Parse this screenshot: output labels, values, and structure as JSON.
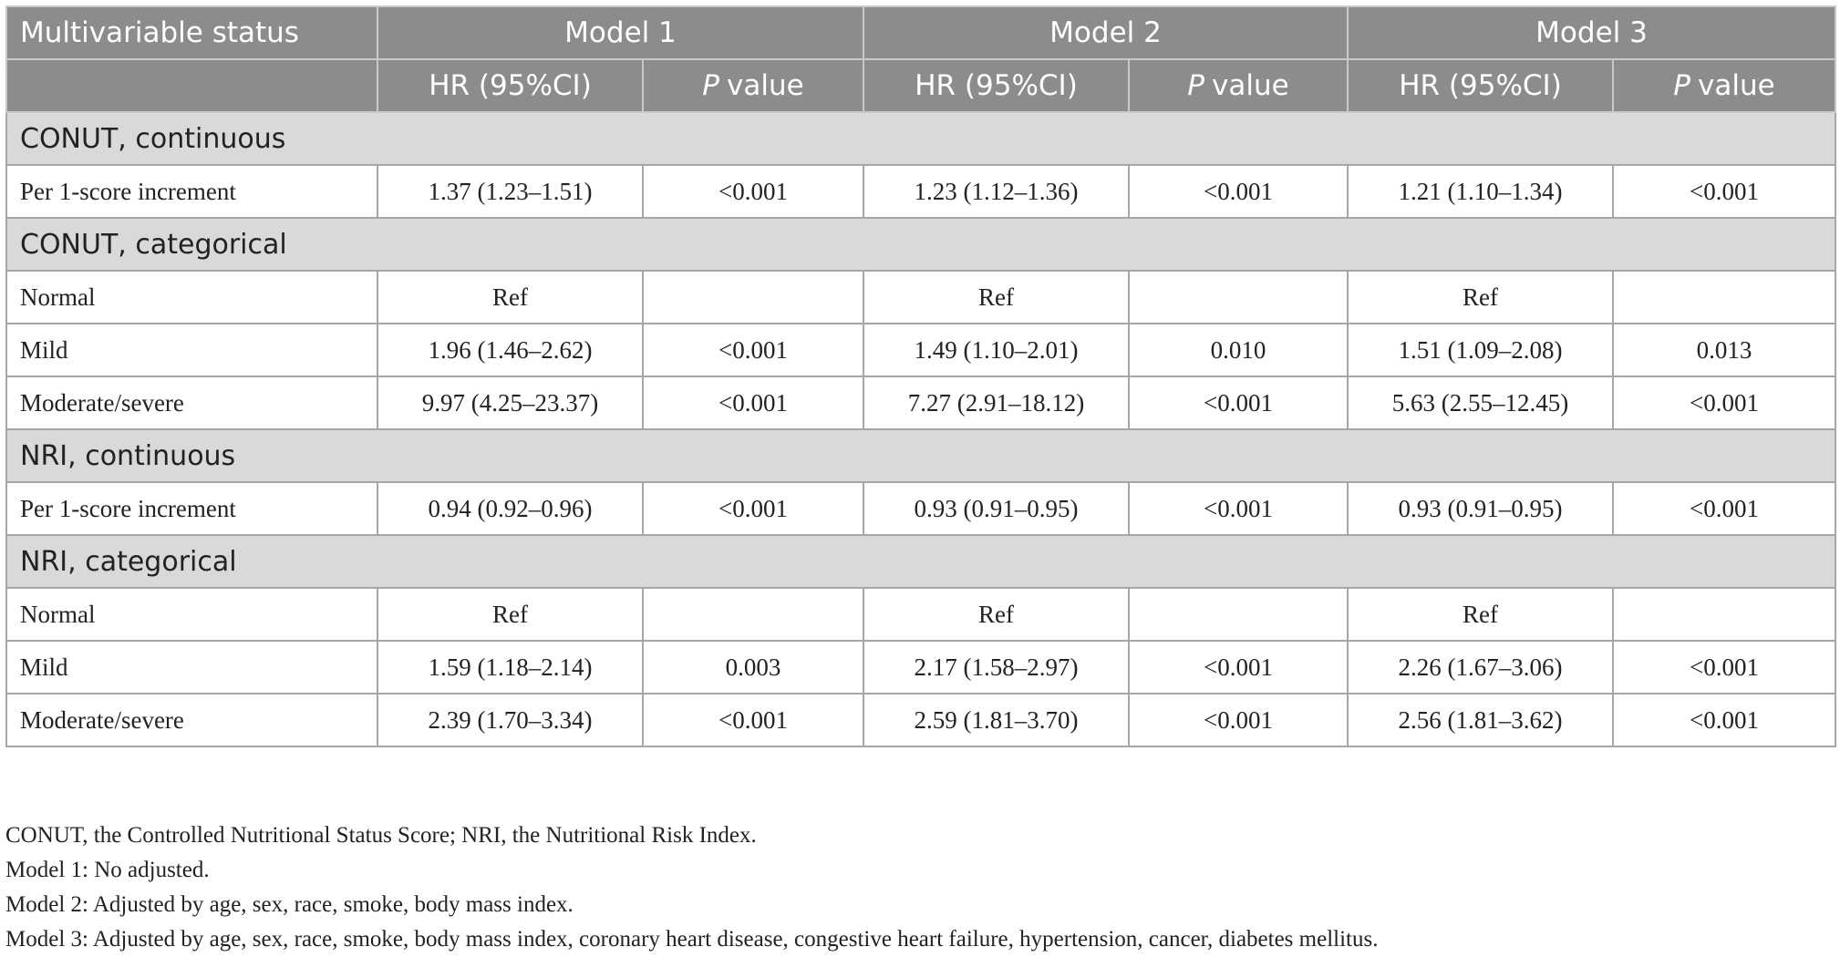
{
  "table": {
    "header": {
      "first": "Multivariable status",
      "models": [
        "Model 1",
        "Model 2",
        "Model 3"
      ],
      "subheaders": [
        "HR (95%CI)",
        {
          "italic": "P",
          "rest": "value"
        },
        "HR (95%CI)",
        {
          "italic": "P",
          "rest": "value"
        },
        "HR (95%CI)",
        {
          "italic": "P",
          "rest": "value"
        }
      ]
    },
    "sections": [
      {
        "title": "CONUT, continuous",
        "rows": [
          [
            "Per 1-score increment",
            "1.37 (1.23–1.51)",
            "<0.001",
            "1.23 (1.12–1.36)",
            "<0.001",
            "1.21 (1.10–1.34)",
            "<0.001"
          ]
        ]
      },
      {
        "title": "CONUT, categorical",
        "rows": [
          [
            "Normal",
            "Ref",
            null,
            "Ref",
            null,
            "Ref",
            null
          ],
          [
            "Mild",
            "1.96 (1.46–2.62)",
            "<0.001",
            "1.49 (1.10–2.01)",
            "0.010",
            "1.51 (1.09–2.08)",
            "0.013"
          ],
          [
            "Moderate/severe",
            "9.97 (4.25–23.37)",
            "<0.001",
            "7.27 (2.91–18.12)",
            "<0.001",
            "5.63 (2.55–12.45)",
            "<0.001"
          ]
        ]
      },
      {
        "title": "NRI, continuous",
        "rows": [
          [
            "Per 1-score increment",
            "0.94 (0.92–0.96)",
            "<0.001",
            "0.93 (0.91–0.95)",
            "<0.001",
            "0.93 (0.91–0.95)",
            "<0.001"
          ]
        ]
      },
      {
        "title": "NRI, categorical",
        "rows": [
          [
            "Normal",
            "Ref",
            null,
            "Ref",
            null,
            "Ref",
            null
          ],
          [
            "Mild",
            "1.59 (1.18–2.14)",
            "0.003",
            "2.17 (1.58–2.97)",
            "<0.001",
            "2.26 (1.67–3.06)",
            "<0.001"
          ],
          [
            "Moderate/severe",
            "2.39 (1.70–3.34)",
            "<0.001",
            "2.59 (1.81–3.70)",
            "<0.001",
            "2.56 (1.81–3.62)",
            "<0.001"
          ]
        ]
      }
    ],
    "footnotes": [
      "CONUT, the Controlled Nutritional Status Score; NRI, the Nutritional Risk Index.",
      "Model 1: No adjusted.",
      "Model 2: Adjusted by age, sex, race, smoke, body mass index.",
      "Model 3: Adjusted by age, sex, race, smoke, body mass index, coronary heart disease, congestive heart failure, hypertension, cancer, diabetes mellitus."
    ]
  }
}
